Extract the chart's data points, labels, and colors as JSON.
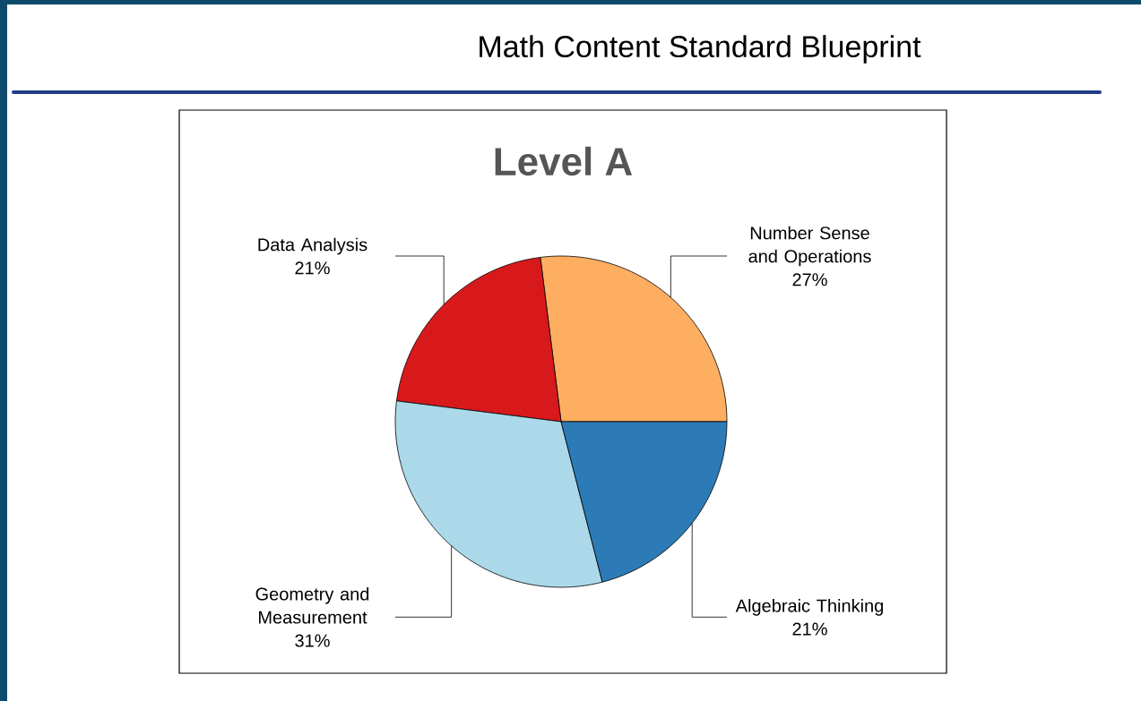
{
  "chart_data": {
    "type": "pie",
    "title": "Math Content Standard Blueprint",
    "subtitle": "Level A",
    "categories": [
      "Number Sense and Operations",
      "Data Analysis",
      "Geometry and Measurement",
      "Algebraic Thinking"
    ],
    "values": [
      27,
      21,
      31,
      21
    ],
    "colors": [
      "#fdae61",
      "#d7191c",
      "#abd9e9",
      "#2c7bb6"
    ],
    "value_labels": [
      "27%",
      "21%",
      "31%",
      "21%"
    ]
  }
}
